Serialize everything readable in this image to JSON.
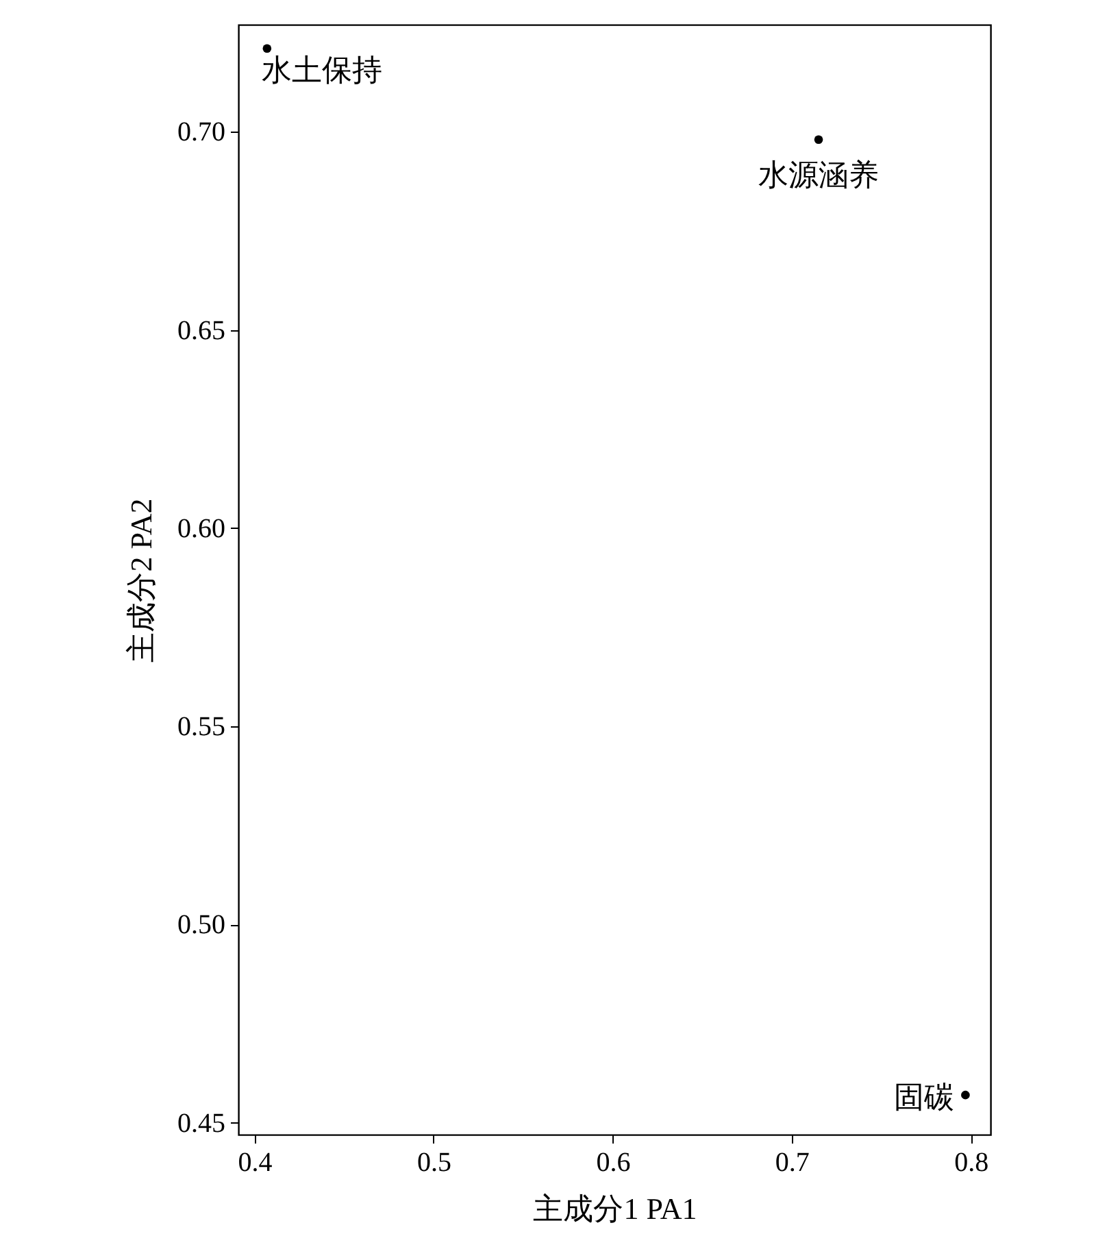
{
  "chart_data": {
    "type": "scatter",
    "xlabel": "主成分1  PA1",
    "ylabel": "主成分2 PA2",
    "x": [
      0.407,
      0.715,
      0.797
    ],
    "series": [
      {
        "color": "#000000",
        "values": [
          0.721,
          0.698,
          0.457
        ]
      }
    ],
    "annotations": [
      {
        "text": "水土保持",
        "x": 0.407,
        "y": 0.721
      },
      {
        "text": "水源涵养",
        "x": 0.715,
        "y": 0.698
      },
      {
        "text": "固碳",
        "x": 0.797,
        "y": 0.457
      }
    ],
    "xlim": [
      0.391,
      0.811
    ],
    "ylim": [
      0.447,
      0.727
    ],
    "xticks": [
      0.4,
      0.5,
      0.6,
      0.7,
      0.8
    ],
    "yticks": [
      {
        "value": 0.45,
        "label": "0.45"
      },
      {
        "value": 0.5,
        "label": "0.50"
      },
      {
        "value": 0.55,
        "label": "0.55"
      },
      {
        "value": 0.6,
        "label": "0.60"
      },
      {
        "value": 0.65,
        "label": "0.65"
      },
      {
        "value": 0.7,
        "label": "0.70"
      }
    ],
    "grid": false,
    "marker": "circle"
  }
}
